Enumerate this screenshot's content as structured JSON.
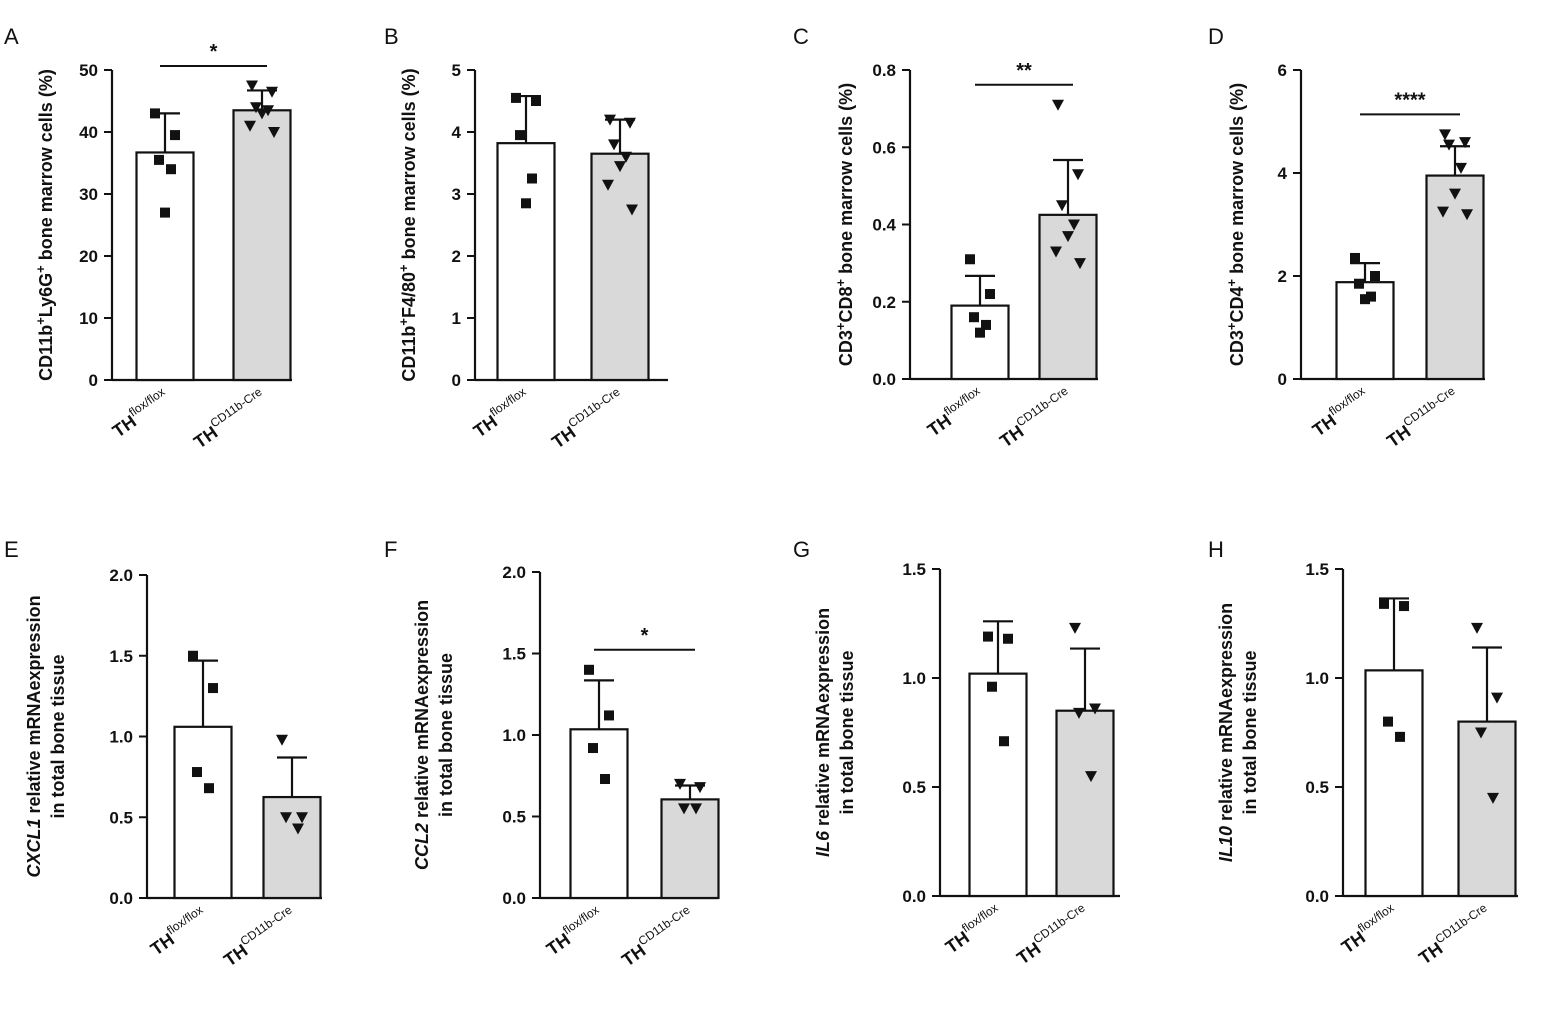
{
  "figure_title": "",
  "chart_data": [
    {
      "panel": "A",
      "type": "bar",
      "ylabel": {
        "parts": [
          "CD11b",
          "+",
          "Ly6G",
          "+",
          " bone marrow cells (%)"
        ]
      },
      "ylim": [
        0,
        50
      ],
      "yticks": [
        "0",
        "10",
        "20",
        "30",
        "40",
        "50"
      ],
      "categories": [
        {
          "base": "TH",
          "sup": "flox/flox"
        },
        {
          "base": "TH",
          "sup": "CD11b-Cre"
        }
      ],
      "bars": [
        {
          "group": "TH flox/flox",
          "mean": 36.7,
          "sd": 6.3,
          "marker": "square",
          "fill": "#ffffff",
          "points": [
            43,
            39.5,
            35.5,
            34,
            27
          ]
        },
        {
          "group": "TH CD11b-Cre",
          "mean": 43.5,
          "sd": 3.2,
          "marker": "triangle",
          "fill": "#d9d9d9",
          "points": [
            47.5,
            46.5,
            44,
            43.5,
            43,
            41,
            40
          ]
        }
      ],
      "significance": "*"
    },
    {
      "panel": "B",
      "type": "bar",
      "ylabel": {
        "parts": [
          "CD11b",
          "+",
          "F4/80",
          "+",
          " bone marrow cells (%)"
        ]
      },
      "ylim": [
        0,
        5
      ],
      "yticks": [
        "0",
        "1",
        "2",
        "3",
        "4",
        "5"
      ],
      "categories": [
        {
          "base": "TH",
          "sup": "flox/flox"
        },
        {
          "base": "TH",
          "sup": "CD11b-Cre"
        }
      ],
      "bars": [
        {
          "group": "TH flox/flox",
          "mean": 3.82,
          "sd": 0.76,
          "marker": "square",
          "fill": "#ffffff",
          "points": [
            4.55,
            4.5,
            3.95,
            3.25,
            2.85
          ]
        },
        {
          "group": "TH CD11b-Cre",
          "mean": 3.65,
          "sd": 0.55,
          "marker": "triangle",
          "fill": "#d9d9d9",
          "points": [
            4.2,
            4.15,
            3.8,
            3.6,
            3.45,
            3.15,
            2.75
          ]
        }
      ],
      "significance": ""
    },
    {
      "panel": "C",
      "type": "bar",
      "ylabel": {
        "parts": [
          "CD3",
          "+",
          "CD8",
          "+",
          " bone marrow cells (%)"
        ]
      },
      "ylim": [
        0,
        0.8
      ],
      "yticks": [
        "0.0",
        "0.2",
        "0.4",
        "0.6",
        "0.8"
      ],
      "categories": [
        {
          "base": "TH",
          "sup": "flox/flox"
        },
        {
          "base": "TH",
          "sup": "CD11b-Cre"
        }
      ],
      "bars": [
        {
          "group": "TH flox/flox",
          "mean": 0.19,
          "sd": 0.077,
          "marker": "square",
          "fill": "#ffffff",
          "points": [
            0.31,
            0.22,
            0.16,
            0.14,
            0.12
          ]
        },
        {
          "group": "TH CD11b-Cre",
          "mean": 0.425,
          "sd": 0.142,
          "marker": "triangle",
          "fill": "#d9d9d9",
          "points": [
            0.71,
            0.53,
            0.45,
            0.4,
            0.37,
            0.33,
            0.3
          ]
        }
      ],
      "significance": "**"
    },
    {
      "panel": "D",
      "type": "bar",
      "ylabel": {
        "parts": [
          "CD3",
          "+",
          "CD4",
          "+",
          " bone marrow cells (%)"
        ]
      },
      "ylim": [
        0,
        6
      ],
      "yticks": [
        "0",
        "2",
        "4",
        "6"
      ],
      "categories": [
        {
          "base": "TH",
          "sup": "flox/flox"
        },
        {
          "base": "TH",
          "sup": "CD11b-Cre"
        }
      ],
      "bars": [
        {
          "group": "TH flox/flox",
          "mean": 1.88,
          "sd": 0.37,
          "marker": "square",
          "fill": "#ffffff",
          "points": [
            2.35,
            2.0,
            1.85,
            1.6,
            1.55
          ]
        },
        {
          "group": "TH CD11b-Cre",
          "mean": 3.95,
          "sd": 0.57,
          "marker": "triangle",
          "fill": "#d9d9d9",
          "points": [
            4.75,
            4.6,
            4.55,
            4.1,
            3.6,
            3.25,
            3.2
          ]
        }
      ],
      "significance": "****"
    },
    {
      "panel": "E",
      "type": "bar",
      "ylabel": {
        "gene": "CXCL1",
        "rest": " relative mRNAexpression",
        "line2": "in total bone tissue"
      },
      "ylim": [
        0,
        2.0
      ],
      "yticks": [
        "0.0",
        "0.5",
        "1.0",
        "1.5",
        "2.0"
      ],
      "categories": [
        {
          "base": "TH",
          "sup": "flox/flox"
        },
        {
          "base": "TH",
          "sup": "CD11b-Cre"
        }
      ],
      "bars": [
        {
          "group": "TH flox/flox",
          "mean": 1.06,
          "sd": 0.41,
          "marker": "square",
          "fill": "#ffffff",
          "points": [
            1.5,
            1.3,
            0.78,
            0.68
          ]
        },
        {
          "group": "TH CD11b-Cre",
          "mean": 0.625,
          "sd": 0.245,
          "marker": "triangle",
          "fill": "#d9d9d9",
          "points": [
            0.98,
            0.5,
            0.5,
            0.43
          ]
        }
      ],
      "significance": ""
    },
    {
      "panel": "F",
      "type": "bar",
      "ylabel": {
        "gene": "CCL2",
        "rest": " relative mRNAexpression",
        "line2": "in total bone tissue"
      },
      "ylim": [
        0,
        2.0
      ],
      "yticks": [
        "0.0",
        "0.5",
        "1.0",
        "1.5",
        "2.0"
      ],
      "categories": [
        {
          "base": "TH",
          "sup": "flox/flox"
        },
        {
          "base": "TH",
          "sup": "CD11b-Cre"
        }
      ],
      "bars": [
        {
          "group": "TH flox/flox",
          "mean": 1.035,
          "sd": 0.3,
          "marker": "square",
          "fill": "#ffffff",
          "points": [
            1.4,
            1.12,
            0.92,
            0.73
          ]
        },
        {
          "group": "TH CD11b-Cre",
          "mean": 0.605,
          "sd": 0.085,
          "marker": "triangle",
          "fill": "#d9d9d9",
          "points": [
            0.7,
            0.68,
            0.55,
            0.55
          ]
        }
      ],
      "significance": "*"
    },
    {
      "panel": "G",
      "type": "bar",
      "ylabel": {
        "gene": "IL6",
        "rest": " relative mRNAexpression",
        "line2": "in total bone tissue"
      },
      "ylim": [
        0,
        1.5
      ],
      "yticks": [
        "0.0",
        "0.5",
        "1.0",
        "1.5"
      ],
      "categories": [
        {
          "base": "TH",
          "sup": "flox/flox"
        },
        {
          "base": "TH",
          "sup": "CD11b-Cre"
        }
      ],
      "bars": [
        {
          "group": "TH flox/flox",
          "mean": 1.02,
          "sd": 0.24,
          "marker": "square",
          "fill": "#ffffff",
          "points": [
            1.19,
            1.18,
            0.96,
            0.71
          ]
        },
        {
          "group": "TH CD11b-Cre",
          "mean": 0.85,
          "sd": 0.285,
          "marker": "triangle",
          "fill": "#d9d9d9",
          "points": [
            1.23,
            0.86,
            0.84,
            0.55
          ]
        }
      ],
      "significance": ""
    },
    {
      "panel": "H",
      "type": "bar",
      "ylabel": {
        "gene": "IL10",
        "rest": " relative mRNAexpression",
        "line2": "in total bone tissue"
      },
      "ylim": [
        0,
        1.5
      ],
      "yticks": [
        "0.0",
        "0.5",
        "1.0",
        "1.5"
      ],
      "categories": [
        {
          "base": "TH",
          "sup": "flox/flox"
        },
        {
          "base": "TH",
          "sup": "CD11b-Cre"
        }
      ],
      "bars": [
        {
          "group": "TH flox/flox",
          "mean": 1.035,
          "sd": 0.33,
          "marker": "square",
          "fill": "#ffffff",
          "points": [
            1.34,
            1.33,
            0.8,
            0.73
          ]
        },
        {
          "group": "TH CD11b-Cre",
          "mean": 0.8,
          "sd": 0.34,
          "marker": "triangle",
          "fill": "#d9d9d9",
          "points": [
            1.23,
            0.91,
            0.75,
            0.45
          ]
        }
      ],
      "significance": ""
    }
  ]
}
